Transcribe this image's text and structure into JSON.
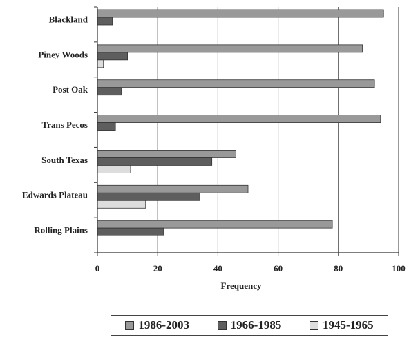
{
  "chart_data": {
    "type": "bar",
    "orientation": "horizontal",
    "categories": [
      "Blackland",
      "Piney Woods",
      "Post Oak",
      "Trans Pecos",
      "South Texas",
      "Edwards Plateau",
      "Rolling Plains"
    ],
    "series": [
      {
        "name": "1986-2003",
        "color": "#999999",
        "values": [
          95,
          88,
          92,
          94,
          46,
          50,
          78
        ]
      },
      {
        "name": "1966-1985",
        "color": "#5e5e5e",
        "values": [
          5,
          10,
          8,
          6,
          38,
          34,
          22
        ]
      },
      {
        "name": "1945-1965",
        "color": "#dddddd",
        "values": [
          0,
          2,
          0,
          0,
          11,
          16,
          0
        ]
      }
    ],
    "xlabel": "Frequency",
    "ylabel": "",
    "xlim": [
      0,
      100
    ],
    "xticks": [
      "0",
      "20",
      "40",
      "60",
      "80",
      "100"
    ],
    "grid": true,
    "legend_position": "bottom"
  }
}
